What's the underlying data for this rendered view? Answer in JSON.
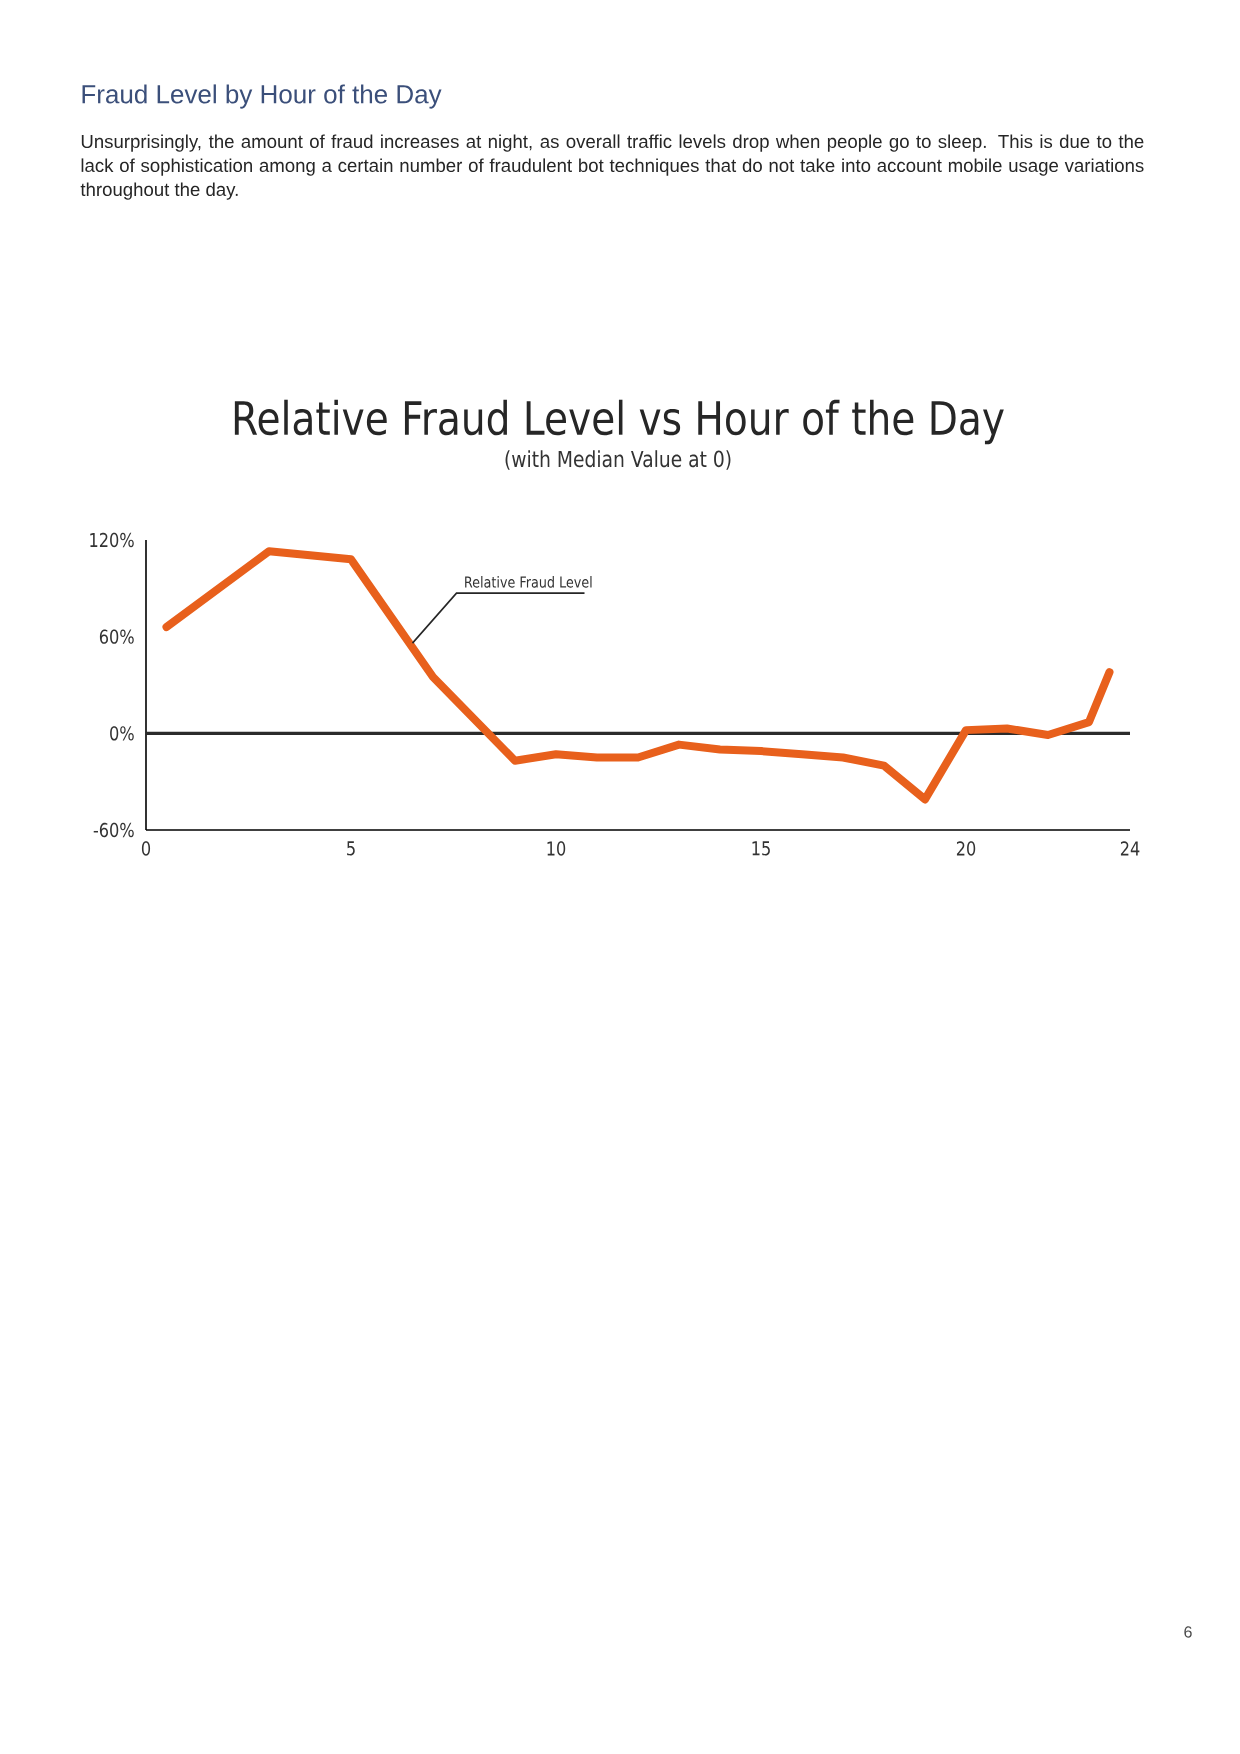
{
  "chart_data": {
    "type": "line",
    "title": "Relative Fraud Level vs Hour of the Day",
    "subtitle": "(with Median Value at 0)",
    "annotations": [
      "Fraud Level by Hour of the Day",
      "Unsurprisingly, the amount of fraud increases at night, as overall traffic levels drop when people go to sleep. This is due to the lack of sophistication among a certain number of fraudulent bot techniques that do not take into account mobile usage variations throughout the day.",
      "6",
      {
        "text": "Relative Fraud Level",
        "x": 6.5,
        "y": 56
      }
    ],
    "x": [
      0.5,
      3,
      5,
      7,
      9,
      10,
      11,
      12,
      13,
      14,
      15,
      16,
      17,
      18,
      19,
      20,
      21,
      22,
      23,
      23.5
    ],
    "series": [
      {
        "color": "#e8601c",
        "values": [
          66,
          113,
          108,
          35,
          -17,
          -13,
          -15,
          -15,
          -7,
          -10,
          -11,
          -13,
          -15,
          -20,
          -41,
          2,
          3,
          -1,
          7,
          38
        ]
      }
    ],
    "xlim": [
      0,
      24
    ],
    "ylim": [
      -60,
      120
    ],
    "xticks": [
      0,
      5,
      10,
      15,
      20,
      24
    ],
    "yticks": [
      {
        "value": -60,
        "label": "-60%"
      },
      {
        "value": 0,
        "label": "0%"
      },
      {
        "value": 60,
        "label": "60%"
      },
      {
        "value": 120,
        "label": "120%"
      }
    ],
    "ref_lines": [
      {
        "axis": "y",
        "value": 0,
        "color": "#2b2b2b"
      }
    ],
    "marker": "none",
    "line_style": "solid"
  }
}
